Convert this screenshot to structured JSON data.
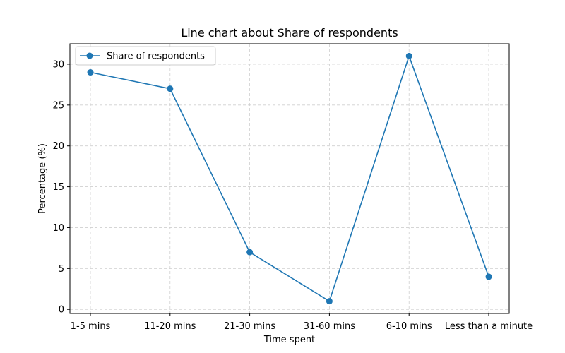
{
  "chart_data": {
    "type": "line",
    "title": "Line chart about Share of respondents",
    "xlabel": "Time spent",
    "ylabel": "Percentage (%)",
    "categories": [
      "1-5 mins",
      "11-20 mins",
      "21-30 mins",
      "31-60 mins",
      "6-10 mins",
      "Less than a minute"
    ],
    "series": [
      {
        "name": "Share of respondents",
        "values": [
          29,
          27,
          7,
          1,
          31,
          4
        ]
      }
    ],
    "ylim": [
      -0.5,
      32.5
    ],
    "yticks": [
      0,
      5,
      10,
      15,
      20,
      25,
      30
    ],
    "grid": true,
    "legend_position": "top-left",
    "colors": {
      "series": "#1f77b4",
      "grid": "#cfcfcf",
      "axis": "#000000"
    }
  }
}
